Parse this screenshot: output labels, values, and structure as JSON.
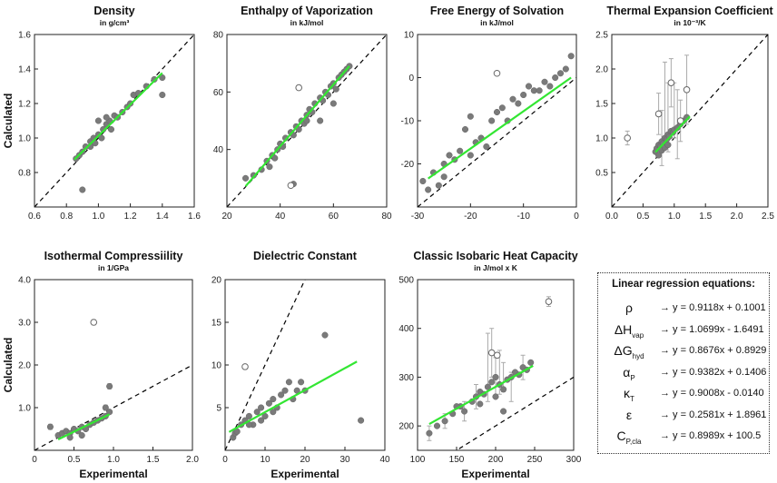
{
  "legend_box": {
    "title": "Linear regression equations:",
    "rows": [
      {
        "sym": "ρ",
        "sub": "",
        "eq": "→ y = 0.9118x + 0.1001"
      },
      {
        "sym": "ΔH",
        "sub": "vap",
        "eq": "→ y = 1.0699x - 1.6491"
      },
      {
        "sym": "ΔG",
        "sub": "hyd",
        "eq": "→ y = 0.8676x + 0.8929"
      },
      {
        "sym": "α",
        "sub": "P",
        "eq": "→ y = 0.9382x + 0.1406"
      },
      {
        "sym": "κ",
        "sub": "T",
        "eq": "→ y = 0.9008x - 0.0140"
      },
      {
        "sym": "ε",
        "sub": "",
        "eq": "→ y = 0.2581x + 1.8961"
      },
      {
        "sym": "C",
        "sub": "P,cla",
        "eq": "→ y = 0.8989x + 100.5"
      }
    ]
  },
  "shared_labels": {
    "ylabel": "Calculated",
    "xlabel": "Experimental"
  },
  "chart_data": [
    {
      "type": "scatter",
      "title": "Density",
      "unit": "in g/cm³",
      "xlim": [
        0.6,
        1.6
      ],
      "ylim": [
        0.6,
        1.6
      ],
      "xticks": [
        "0.6",
        "0.8",
        "1.0",
        "1.2",
        "1.4",
        "1.6"
      ],
      "yticks": [
        "0.8",
        "1.0",
        "1.2",
        "1.4",
        "1.6"
      ],
      "fit": {
        "x": [
          0.85,
          1.4
        ],
        "y": [
          0.875,
          1.377
        ]
      },
      "points": [
        [
          0.86,
          0.88
        ],
        [
          0.88,
          0.9
        ],
        [
          0.9,
          0.92
        ],
        [
          0.92,
          0.95
        ],
        [
          0.95,
          0.98
        ],
        [
          0.97,
          1.0
        ],
        [
          0.98,
          0.97
        ],
        [
          1.0,
          1.02
        ],
        [
          1.02,
          1.0
        ],
        [
          1.03,
          1.05
        ],
        [
          1.05,
          1.08
        ],
        [
          1.07,
          1.1
        ],
        [
          1.08,
          1.05
        ],
        [
          1.1,
          1.13
        ],
        [
          1.12,
          1.12
        ],
        [
          1.15,
          1.15
        ],
        [
          1.18,
          1.18
        ],
        [
          1.2,
          1.2
        ],
        [
          1.22,
          1.25
        ],
        [
          1.25,
          1.26
        ],
        [
          1.3,
          1.3
        ],
        [
          1.35,
          1.34
        ],
        [
          1.4,
          1.35
        ],
        [
          1.4,
          1.25
        ],
        [
          0.9,
          0.7
        ],
        [
          1.0,
          1.1
        ],
        [
          1.05,
          1.12
        ],
        [
          0.95,
          0.95
        ]
      ],
      "open_points": [],
      "error_bars": []
    },
    {
      "type": "scatter",
      "title": "Enthalpy of Vaporization",
      "unit": "in kJ/mol",
      "xlim": [
        20,
        80
      ],
      "ylim": [
        20,
        80
      ],
      "xticks": [
        "20",
        "40",
        "60",
        "80"
      ],
      "yticks": [
        "40",
        "60",
        "80"
      ],
      "fit": {
        "x": [
          27,
          66
        ],
        "y": [
          27.2,
          69.0
        ]
      },
      "points": [
        [
          27,
          30
        ],
        [
          30,
          31
        ],
        [
          33,
          33
        ],
        [
          35,
          36
        ],
        [
          36,
          34
        ],
        [
          37,
          38
        ],
        [
          38,
          37
        ],
        [
          39,
          40
        ],
        [
          40,
          42
        ],
        [
          41,
          41
        ],
        [
          42,
          44
        ],
        [
          44,
          46
        ],
        [
          45,
          45
        ],
        [
          46,
          48
        ],
        [
          47,
          47
        ],
        [
          48,
          50
        ],
        [
          49,
          49
        ],
        [
          50,
          52
        ],
        [
          51,
          54
        ],
        [
          52,
          53
        ],
        [
          53,
          56
        ],
        [
          55,
          58
        ],
        [
          56,
          57
        ],
        [
          57,
          60
        ],
        [
          58,
          59
        ],
        [
          59,
          62
        ],
        [
          60,
          63
        ],
        [
          61,
          61
        ],
        [
          62,
          65
        ],
        [
          63,
          66
        ],
        [
          64,
          67
        ],
        [
          65,
          68
        ],
        [
          66,
          69
        ],
        [
          45,
          28
        ],
        [
          50,
          50
        ],
        [
          55,
          50
        ],
        [
          60,
          56
        ]
      ],
      "open_points": [
        [
          44,
          27.5
        ],
        [
          47,
          61.5
        ]
      ],
      "error_bars": []
    },
    {
      "type": "scatter",
      "title": "Free Energy of Solvation",
      "unit": "in kJ/mol",
      "xlim": [
        -30,
        0
      ],
      "ylim": [
        -30,
        10
      ],
      "xticks": [
        "-30",
        "-20",
        "-10",
        "0"
      ],
      "yticks": [
        "-20",
        "-10",
        "0",
        "10"
      ],
      "fit": {
        "x": [
          -28,
          -1
        ],
        "y": [
          -23.4,
          -0.0
        ]
      },
      "points": [
        [
          -29,
          -24
        ],
        [
          -28,
          -26
        ],
        [
          -27,
          -22
        ],
        [
          -26,
          -25
        ],
        [
          -25,
          -20
        ],
        [
          -24,
          -18
        ],
        [
          -23,
          -19
        ],
        [
          -22,
          -17
        ],
        [
          -21,
          -12
        ],
        [
          -20,
          -9
        ],
        [
          -19,
          -15
        ],
        [
          -18,
          -14
        ],
        [
          -17,
          -16
        ],
        [
          -16,
          -10
        ],
        [
          -15,
          -8
        ],
        [
          -14,
          -7
        ],
        [
          -13,
          -10
        ],
        [
          -12,
          -5
        ],
        [
          -11,
          -6
        ],
        [
          -10,
          -4
        ],
        [
          -9,
          -2
        ],
        [
          -8,
          -3
        ],
        [
          -7,
          -3
        ],
        [
          -6,
          -1
        ],
        [
          -5,
          -2
        ],
        [
          -4,
          0
        ],
        [
          -3,
          1
        ],
        [
          -2,
          2
        ],
        [
          -1,
          5
        ],
        [
          -20,
          -18
        ],
        [
          -25,
          -23
        ]
      ],
      "open_points": [
        [
          -15,
          1
        ]
      ],
      "error_bars": []
    },
    {
      "type": "scatter",
      "title": "Thermal Expansion Coefficient",
      "unit": "in 10⁻³/K",
      "xlim": [
        0.0,
        2.5
      ],
      "ylim": [
        0.0,
        2.5
      ],
      "xticks": [
        "0.0",
        "0.5",
        "1.0",
        "1.5",
        "2.0",
        "2.5"
      ],
      "yticks": [
        "0.5",
        "1.0",
        "1.5",
        "2.0",
        "2.5"
      ],
      "fit": {
        "x": [
          0.7,
          1.25
        ],
        "y": [
          0.797,
          1.313
        ]
      },
      "points": [
        [
          0.7,
          0.8
        ],
        [
          0.72,
          0.85
        ],
        [
          0.75,
          0.9
        ],
        [
          0.78,
          0.88
        ],
        [
          0.8,
          0.95
        ],
        [
          0.82,
          0.92
        ],
        [
          0.85,
          1.0
        ],
        [
          0.88,
          0.98
        ],
        [
          0.9,
          1.05
        ],
        [
          0.92,
          1.02
        ],
        [
          0.95,
          1.1
        ],
        [
          0.98,
          1.08
        ],
        [
          1.0,
          1.12
        ],
        [
          1.05,
          1.15
        ],
        [
          1.1,
          1.2
        ],
        [
          1.15,
          1.25
        ],
        [
          1.2,
          1.3
        ],
        [
          0.75,
          0.75
        ],
        [
          0.8,
          0.82
        ],
        [
          0.85,
          0.86
        ],
        [
          0.9,
          0.9
        ]
      ],
      "open_points": [
        [
          0.25,
          1.0
        ],
        [
          0.75,
          1.35
        ],
        [
          0.95,
          1.8
        ],
        [
          1.2,
          1.7
        ],
        [
          1.1,
          1.25
        ]
      ],
      "error_bars": [
        [
          0.25,
          1.0,
          0.1
        ],
        [
          0.75,
          1.35,
          0.3
        ],
        [
          0.85,
          1.5,
          0.6
        ],
        [
          0.9,
          1.3,
          0.5
        ],
        [
          0.95,
          1.8,
          0.35
        ],
        [
          1.0,
          1.4,
          0.4
        ],
        [
          1.05,
          1.2,
          0.5
        ],
        [
          1.1,
          1.25,
          0.3
        ],
        [
          1.2,
          1.7,
          0.5
        ],
        [
          0.8,
          1.0,
          0.4
        ]
      ]
    },
    {
      "type": "scatter",
      "title": "Isothermal Compressiility",
      "unit": "in 1/GPa",
      "xlim": [
        0.0,
        2.0
      ],
      "ylim": [
        0.0,
        4.0
      ],
      "xticks": [
        "0",
        "0.5",
        "1.0",
        "1.5",
        "2.0"
      ],
      "yticks": [
        "1.0",
        "2.0",
        "3.0",
        "4.0"
      ],
      "fit": {
        "x": [
          0.3,
          0.95
        ],
        "y": [
          0.256,
          0.842
        ]
      },
      "points": [
        [
          0.2,
          0.55
        ],
        [
          0.3,
          0.35
        ],
        [
          0.35,
          0.4
        ],
        [
          0.4,
          0.45
        ],
        [
          0.45,
          0.4
        ],
        [
          0.5,
          0.5
        ],
        [
          0.55,
          0.45
        ],
        [
          0.6,
          0.55
        ],
        [
          0.65,
          0.5
        ],
        [
          0.7,
          0.6
        ],
        [
          0.75,
          0.65
        ],
        [
          0.8,
          0.7
        ],
        [
          0.85,
          0.75
        ],
        [
          0.9,
          0.8
        ],
        [
          0.9,
          1.0
        ],
        [
          0.95,
          0.9
        ],
        [
          0.95,
          1.5
        ],
        [
          0.45,
          0.3
        ],
        [
          0.6,
          0.35
        ]
      ],
      "open_points": [
        [
          0.75,
          3.0
        ]
      ],
      "error_bars": [
        [
          0.2,
          0.55,
          0.06
        ],
        [
          0.95,
          1.5,
          0.06
        ],
        [
          0.75,
          3.0,
          0.06
        ],
        [
          0.9,
          1.0,
          0.06
        ]
      ]
    },
    {
      "type": "scatter",
      "title": "Dielectric Constant",
      "unit": "",
      "xlim": [
        0,
        40
      ],
      "ylim": [
        0,
        20
      ],
      "xticks": [
        "0",
        "10",
        "20",
        "30",
        "40"
      ],
      "yticks": [
        "5",
        "10",
        "15",
        "20"
      ],
      "fit": {
        "x": [
          1,
          33
        ],
        "y": [
          2.15,
          10.4
        ]
      },
      "points": [
        [
          2,
          1.5
        ],
        [
          2.5,
          2
        ],
        [
          3,
          2.2
        ],
        [
          4,
          3
        ],
        [
          5,
          3.5
        ],
        [
          6,
          4
        ],
        [
          7,
          3
        ],
        [
          8,
          4.5
        ],
        [
          9,
          5
        ],
        [
          10,
          4
        ],
        [
          11,
          5.5
        ],
        [
          12,
          6
        ],
        [
          13,
          5
        ],
        [
          14,
          6.5
        ],
        [
          15,
          7
        ],
        [
          16,
          8
        ],
        [
          17,
          6
        ],
        [
          18,
          7
        ],
        [
          19,
          8
        ],
        [
          20,
          7
        ],
        [
          25,
          13.5
        ],
        [
          34,
          3.5
        ],
        [
          6,
          3
        ],
        [
          9,
          3.5
        ],
        [
          12,
          4.5
        ]
      ],
      "open_points": [
        [
          5,
          9.8
        ]
      ],
      "error_bars": []
    },
    {
      "type": "scatter",
      "title": "Classic Isobaric Heat Capacity",
      "unit": "in J/mol x K",
      "xlim": [
        100,
        300
      ],
      "ylim": [
        150,
        500
      ],
      "xticks": [
        "100",
        "150",
        "200",
        "250",
        "300"
      ],
      "yticks": [
        "200",
        "300",
        "400",
        "500"
      ],
      "fit": {
        "x": [
          115,
          248
        ],
        "y": [
          203.9,
          323.4
        ]
      },
      "points": [
        [
          115,
          185
        ],
        [
          125,
          200
        ],
        [
          135,
          210
        ],
        [
          145,
          225
        ],
        [
          155,
          240
        ],
        [
          160,
          230
        ],
        [
          170,
          250
        ],
        [
          175,
          260
        ],
        [
          180,
          270
        ],
        [
          185,
          265
        ],
        [
          190,
          280
        ],
        [
          195,
          290
        ],
        [
          200,
          300
        ],
        [
          205,
          285
        ],
        [
          210,
          275
        ],
        [
          215,
          295
        ],
        [
          220,
          300
        ],
        [
          225,
          310
        ],
        [
          230,
          305
        ],
        [
          235,
          320
        ],
        [
          240,
          315
        ],
        [
          245,
          330
        ],
        [
          180,
          245
        ],
        [
          200,
          260
        ],
        [
          210,
          230
        ],
        [
          150,
          240
        ]
      ],
      "open_points": [
        [
          195,
          350
        ],
        [
          202,
          345
        ],
        [
          268,
          455
        ]
      ],
      "error_bars": [
        [
          115,
          185,
          15
        ],
        [
          135,
          210,
          15
        ],
        [
          160,
          230,
          20
        ],
        [
          175,
          260,
          25
        ],
        [
          190,
          320,
          70
        ],
        [
          195,
          350,
          50
        ],
        [
          200,
          300,
          40
        ],
        [
          205,
          310,
          45
        ],
        [
          210,
          300,
          30
        ],
        [
          220,
          280,
          30
        ],
        [
          235,
          320,
          25
        ],
        [
          268,
          455,
          10
        ]
      ]
    }
  ]
}
